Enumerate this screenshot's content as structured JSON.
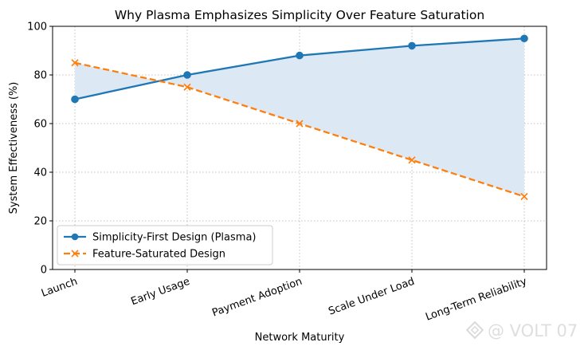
{
  "chart_data": {
    "type": "line",
    "title": "Why Plasma Emphasizes Simplicity Over Feature Saturation",
    "xlabel": "Network Maturity",
    "ylabel": "System Effectiveness (%)",
    "categories": [
      "Launch",
      "Early Usage",
      "Payment Adoption",
      "Scale Under Load",
      "Long-Term Reliability"
    ],
    "ylim": [
      0,
      100
    ],
    "yticks": [
      0,
      20,
      40,
      60,
      80,
      100
    ],
    "grid": true,
    "legend_position": "lower-left",
    "fill_between": true,
    "series": [
      {
        "name": "Simplicity-First Design (Plasma)",
        "values": [
          70,
          80,
          88,
          92,
          95
        ],
        "color": "#1f77b4",
        "line_style": "solid",
        "marker": "circle"
      },
      {
        "name": "Feature-Saturated Design",
        "values": [
          85,
          75,
          60,
          45,
          30
        ],
        "color": "#ff7f0e",
        "line_style": "dashed",
        "marker": "x"
      }
    ],
    "fill_color": "#dce9f5"
  },
  "watermark": {
    "text": "@ VOLT 07"
  }
}
